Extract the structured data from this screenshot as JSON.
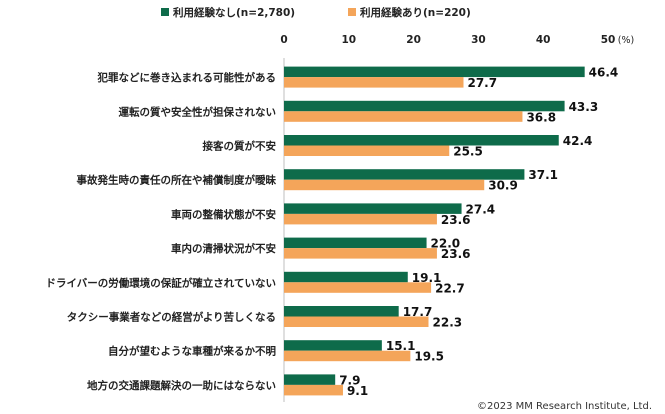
{
  "chart_data": {
    "type": "bar",
    "orientation": "horizontal",
    "title": "",
    "xlabel": "",
    "ylabel": "",
    "x_unit": "(%)",
    "xlim": [
      0,
      50
    ],
    "x_ticks": [
      0,
      10,
      20,
      30,
      40,
      50
    ],
    "grid": false,
    "legend_position": "top",
    "categories": [
      "犯罪などに巻き込まれる可能性がある",
      "運転の質や安全性が担保されない",
      "接客の質が不安",
      "事故発生時の責任の所在や補償制度が曖昧",
      "車両の整備状態が不安",
      "車内の清掃状況が不安",
      "ドライバーの労働環境の保証が確立されていない",
      "タクシー事業者などの経営がより苦しくなる",
      "自分が望むような車種が来るか不明",
      "地方の交通課題解決の一助にはならない"
    ],
    "series": [
      {
        "name": "利用経験なし(n=2,780)",
        "color": "#0e6b4a",
        "values": [
          46.4,
          43.3,
          42.4,
          37.1,
          27.4,
          22.0,
          19.1,
          17.7,
          15.1,
          7.9
        ],
        "labels": [
          "46.4",
          "43.3",
          "42.4",
          "37.1",
          "27.4",
          "22.0",
          "19.1",
          "17.7",
          "15.1",
          "7.9"
        ]
      },
      {
        "name": "利用経験あり(n=220)",
        "color": "#f4a55a",
        "values": [
          27.7,
          36.8,
          25.5,
          30.9,
          23.6,
          23.6,
          22.7,
          22.3,
          19.5,
          9.1
        ],
        "labels": [
          "27.7",
          "36.8",
          "25.5",
          "30.9",
          "23.6",
          "23.6",
          "22.7",
          "22.3",
          "19.5",
          "9.1"
        ]
      }
    ],
    "copyright": "©2023 MM Research Institute, Ltd."
  }
}
